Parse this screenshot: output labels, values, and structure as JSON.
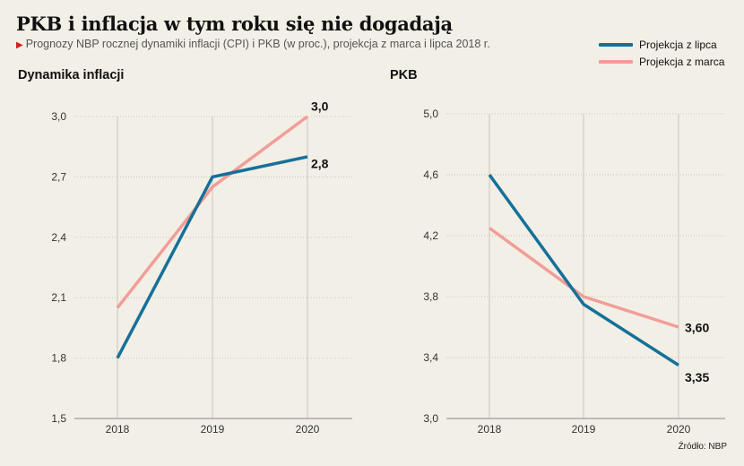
{
  "title": "PKB i inflacja w tym roku się nie dogadają",
  "subtitle": "Prognozy NBP rocznej dynamiki inflacji (CPI) i PKB (w proc.), projekcja z marca i lipca 2018 r.",
  "subtitle_marker": "▶",
  "source": "Źródło: NBP",
  "legend": [
    {
      "label": "Projekcja z lipca",
      "color": "#15709a"
    },
    {
      "label": "Projekcja z marca",
      "color": "#f29d98"
    }
  ],
  "chart_data": [
    {
      "type": "line",
      "title": "Dynamika inflacji",
      "categories": [
        "2018",
        "2019",
        "2020"
      ],
      "ylim": [
        1.5,
        3.0
      ],
      "yticks": [
        "1,5",
        "1,8",
        "2,1",
        "2,4",
        "2,7",
        "3,0"
      ],
      "grid": true,
      "series": [
        {
          "name": "Projekcja z lipca",
          "values": [
            1.8,
            2.7,
            2.8
          ],
          "color": "#15709a",
          "end_label": "2,8"
        },
        {
          "name": "Projekcja z marca",
          "values": [
            2.05,
            2.65,
            3.0
          ],
          "color": "#f29d98",
          "end_label": "3,0"
        }
      ]
    },
    {
      "type": "line",
      "title": "PKB",
      "categories": [
        "2018",
        "2019",
        "2020"
      ],
      "ylim": [
        3.0,
        5.0
      ],
      "yticks": [
        "3,0",
        "3,4",
        "3,8",
        "4,2",
        "4,6",
        "5,0"
      ],
      "grid": true,
      "series": [
        {
          "name": "Projekcja z lipca",
          "values": [
            4.6,
            3.75,
            3.35
          ],
          "color": "#15709a",
          "end_label": "3,35"
        },
        {
          "name": "Projekcja z marca",
          "values": [
            4.25,
            3.8,
            3.6
          ],
          "color": "#f29d98",
          "end_label": "3,60"
        }
      ]
    }
  ]
}
